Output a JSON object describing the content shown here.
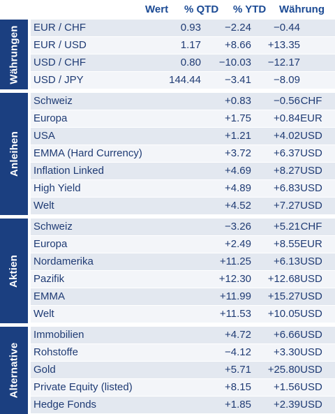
{
  "header": {
    "wert": "Wert",
    "qtd": "% QTD",
    "ytd": "% YTD",
    "currency": "Währung"
  },
  "groups": [
    {
      "label": "Währungen",
      "rows": [
        {
          "name": "EUR / CHF",
          "wert": "0.93",
          "qtd": "−2.24",
          "ytd": "−0.44",
          "cur": ""
        },
        {
          "name": "EUR / USD",
          "wert": "1.17",
          "qtd": "+8.66",
          "ytd": "+13.35",
          "cur": ""
        },
        {
          "name": "USD / CHF",
          "wert": "0.80",
          "qtd": "−10.03",
          "ytd": "−12.17",
          "cur": ""
        },
        {
          "name": "USD / JPY",
          "wert": "144.44",
          "qtd": "−3.41",
          "ytd": "−8.09",
          "cur": ""
        }
      ]
    },
    {
      "label": "Anleihen",
      "rows": [
        {
          "name": "Schweiz",
          "wert": "",
          "qtd": "+0.83",
          "ytd": "−0.56",
          "cur": "CHF"
        },
        {
          "name": "Europa",
          "wert": "",
          "qtd": "+1.75",
          "ytd": "+0.84",
          "cur": "EUR"
        },
        {
          "name": "USA",
          "wert": "",
          "qtd": "+1.21",
          "ytd": "+4.02",
          "cur": "USD"
        },
        {
          "name": "EMMA (Hard Currency)",
          "wert": "",
          "qtd": "+3.72",
          "ytd": "+6.37",
          "cur": "USD"
        },
        {
          "name": "Inflation Linked",
          "wert": "",
          "qtd": "+4.69",
          "ytd": "+8.27",
          "cur": "USD"
        },
        {
          "name": "High Yield",
          "wert": "",
          "qtd": "+4.89",
          "ytd": "+6.83",
          "cur": "USD"
        },
        {
          "name": "Welt",
          "wert": "",
          "qtd": "+4.52",
          "ytd": "+7.27",
          "cur": "USD"
        }
      ]
    },
    {
      "label": "Aktien",
      "rows": [
        {
          "name": "Schweiz",
          "wert": "",
          "qtd": "−3.26",
          "ytd": "+5.21",
          "cur": "CHF"
        },
        {
          "name": "Europa",
          "wert": "",
          "qtd": "+2.49",
          "ytd": "+8.55",
          "cur": "EUR"
        },
        {
          "name": "Nordamerika",
          "wert": "",
          "qtd": "+11.25",
          "ytd": "+6.13",
          "cur": "USD"
        },
        {
          "name": "Pazifik",
          "wert": "",
          "qtd": "+12.30",
          "ytd": "+12.68",
          "cur": "USD"
        },
        {
          "name": "EMMA",
          "wert": "",
          "qtd": "+11.99",
          "ytd": "+15.27",
          "cur": "USD"
        },
        {
          "name": "Welt",
          "wert": "",
          "qtd": "+11.53",
          "ytd": "+10.05",
          "cur": "USD"
        }
      ]
    },
    {
      "label": "Alternative",
      "rows": [
        {
          "name": "Immobilien",
          "wert": "",
          "qtd": "+4.72",
          "ytd": "+6.66",
          "cur": "USD"
        },
        {
          "name": "Rohstoffe",
          "wert": "",
          "qtd": "−4.12",
          "ytd": "+3.30",
          "cur": "USD"
        },
        {
          "name": "Gold",
          "wert": "",
          "qtd": "+5.71",
          "ytd": "+25.80",
          "cur": "USD"
        },
        {
          "name": "Private Equity (listed)",
          "wert": "",
          "qtd": "+8.15",
          "ytd": "+1.56",
          "cur": "USD"
        },
        {
          "name": "Hedge Fonds",
          "wert": "",
          "qtd": "+1.85",
          "ytd": "+2.39",
          "cur": "USD"
        }
      ]
    }
  ]
}
